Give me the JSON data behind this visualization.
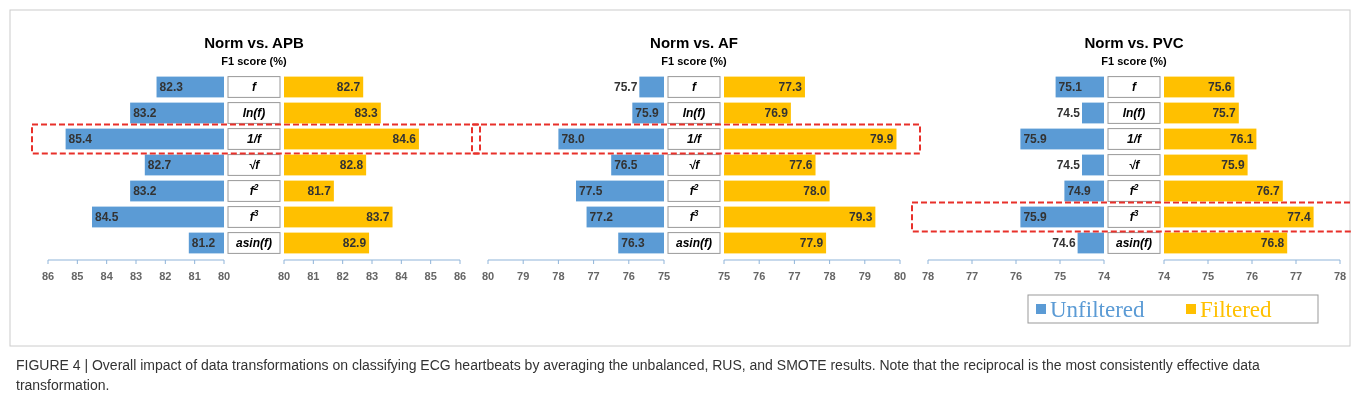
{
  "chart_data": [
    {
      "type": "bar",
      "orientation": "horizontal",
      "title": "Norm vs. APB",
      "subtitle": "F1 score (%)",
      "categories": [
        "f",
        "ln(f)",
        "1/f",
        "√f",
        "f$^{2}$",
        "f$^{3}$",
        "asin(f)"
      ],
      "series": [
        {
          "color": "#5b9bd5",
          "values": [
            82.3,
            83.2,
            85.4,
            82.7,
            83.2,
            84.5,
            81.2
          ]
        }
      ],
      "xlim": [
        86,
        80
      ],
      "xticks": [
        86,
        85,
        84,
        83,
        82,
        81,
        80
      ],
      "data_labels": true,
      "annotations": [
        "FIGURE 4 | Overall impact of data transformations on classifying ECG heartbeats by averaging the unbalanced, RUS, and SMOTE results. Note that the reciprocal is the most consistently effective data transformation."
      ]
    },
    {
      "type": "bar",
      "orientation": "horizontal",
      "categories": [
        null,
        null,
        null,
        null,
        null,
        null,
        null
      ],
      "series": [
        {
          "color": "#ffc000",
          "values": [
            82.7,
            83.3,
            84.6,
            82.8,
            81.7,
            83.7,
            82.9
          ]
        }
      ],
      "xlim": [
        80,
        86
      ],
      "xticks": [
        80,
        81,
        82,
        83,
        84,
        85,
        86
      ],
      "data_labels": true
    },
    {
      "type": "bar",
      "orientation": "horizontal",
      "title": "Norm vs. AF",
      "subtitle": "F1 score (%)",
      "categories": [
        "f",
        "ln(f)",
        "1/f",
        "√f",
        "f$^{2}$",
        "f$^{3}$",
        "asin(f)"
      ],
      "series": [
        {
          "color": "#5b9bd5",
          "values": [
            75.7,
            75.9,
            78.0,
            76.5,
            77.5,
            77.2,
            76.3
          ],
          "value_labels": [
            "75.7",
            "75.9",
            "78.0",
            "76.5",
            "77.5",
            "77.2",
            "76.3"
          ]
        }
      ],
      "xlim": [
        80,
        75
      ],
      "xticks": [
        80,
        79,
        78,
        77,
        76,
        75
      ]
    },
    {
      "type": "bar",
      "orientation": "horizontal",
      "categories": [
        null,
        null,
        null,
        null,
        null,
        null,
        null
      ],
      "series": [
        {
          "color": "#ffc000",
          "values": [
            77.3,
            76.9,
            79.9,
            77.6,
            78.0,
            79.3,
            77.9
          ],
          "value_labels": [
            "77.3",
            "76.9",
            "79.9",
            "77.6",
            "78.0",
            "79.3",
            "77.9"
          ]
        }
      ],
      "xlim": [
        75,
        80
      ],
      "xticks": [
        75,
        76,
        77,
        78,
        79,
        80
      ]
    },
    {
      "type": "bar",
      "orientation": "horizontal",
      "title": "Norm vs. PVC",
      "subtitle": "F1 score (%)",
      "categories": [
        "f",
        "ln(f)",
        "1/f",
        "√f",
        "f$^{2}$",
        "f$^{3}$",
        "asin(f)"
      ],
      "series": [
        {
          "name": "Unfiltered",
          "color": "#5b9bd5",
          "values": [
            75.1,
            74.5,
            75.9,
            74.5,
            74.9,
            75.9,
            74.6
          ]
        }
      ],
      "xlim": [
        78,
        74
      ],
      "xticks": [
        78,
        77,
        76,
        75,
        74
      ],
      "data_labels": true,
      "legend": "bottom right"
    },
    {
      "type": "bar",
      "orientation": "horizontal",
      "categories": [
        null,
        null,
        null,
        null,
        null,
        null,
        null
      ],
      "series": [
        {
          "name": "Filtered",
          "color": "#ffc000",
          "values": [
            75.6,
            75.7,
            76.1,
            75.9,
            76.7,
            77.4,
            76.8
          ]
        }
      ],
      "xlim": [
        74,
        78
      ],
      "xticks": [
        74,
        75,
        76,
        77,
        78
      ],
      "data_labels": true,
      "legend": "bottom"
    }
  ]
}
